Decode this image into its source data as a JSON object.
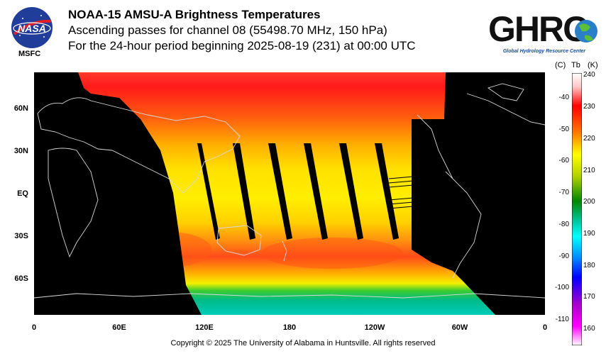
{
  "header": {
    "title": "NOAA-15 AMSU-A Brightness Temperatures",
    "subtitle": "Ascending passes for channel 08 (55498.70 MHz, 150 hPa)",
    "period": "For the 24-hour period beginning 2025-08-19 (231) at 00:00 UTC"
  },
  "logos": {
    "nasa_text": "NASA",
    "nasa_sub": "MSFC",
    "ghrc_text": "GHRC",
    "ghrc_sub": "Global Hydrology Resource Center"
  },
  "map": {
    "lat_labels": [
      "60N",
      "30N",
      "EQ",
      "30S",
      "60S"
    ],
    "lon_labels": [
      "0",
      "60E",
      "120E",
      "180",
      "120W",
      "60W",
      "0"
    ]
  },
  "colorbar": {
    "header_c": "(C)",
    "header_tb": "Tb",
    "header_k": "(K)",
    "celsius_ticks": [
      "-40",
      "-50",
      "-60",
      "-70",
      "-80",
      "-90",
      "-100",
      "-110"
    ],
    "kelvin_ticks": [
      "240",
      "230",
      "220",
      "210",
      "200",
      "190",
      "180",
      "170",
      "160"
    ],
    "kelvin_range": [
      155,
      240
    ],
    "colors": [
      "#ffffff",
      "#ff0000",
      "#ffff00",
      "#00aa00",
      "#00ffff",
      "#0000ff",
      "#ff00ff",
      "#ffffff"
    ]
  },
  "footer": {
    "copyright": "Copyright © 2025 The University of Alabama in Huntsville.  All rights reserved"
  }
}
